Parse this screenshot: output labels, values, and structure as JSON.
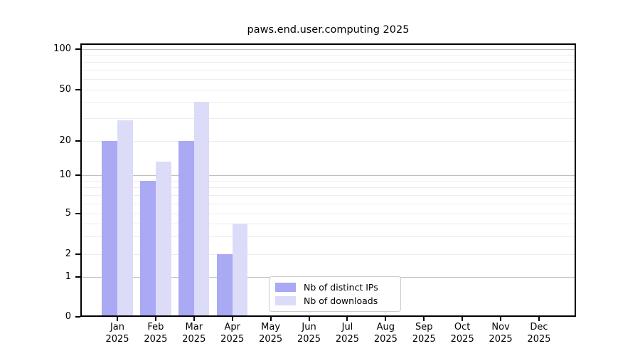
{
  "figure": {
    "title": "paws.end.user.computing 2025"
  },
  "chart_data": {
    "type": "bar",
    "title": "paws.end.user.computing 2025",
    "x_categories": [
      "Jan",
      "Feb",
      "Mar",
      "Apr",
      "May",
      "Jun",
      "Jul",
      "Aug",
      "Sep",
      "Oct",
      "Nov",
      "Dec"
    ],
    "x_year_label": "2025",
    "series": [
      {
        "name": "Nb of distinct IPs",
        "color": "#a9a9f4",
        "values": [
          20,
          9,
          20,
          2,
          null,
          null,
          null,
          null,
          null,
          null,
          null,
          null
        ]
      },
      {
        "name": "Nb of downloads",
        "color": "#dcdcf8",
        "values": [
          29,
          13,
          40,
          4,
          null,
          null,
          null,
          null,
          null,
          null,
          null,
          null
        ]
      }
    ],
    "xlabel": "",
    "ylabel": "",
    "y_ticks": [
      0,
      1,
      2,
      5,
      10,
      20,
      50,
      100
    ],
    "y_scale": "log-like with 0 baseline",
    "ylim": [
      0,
      112
    ],
    "grid": true,
    "grid_major_values": [
      1,
      10,
      100
    ],
    "grid_minor_values": [
      2,
      3,
      4,
      5,
      6,
      7,
      8,
      9,
      20,
      30,
      40,
      50,
      60,
      70,
      80,
      90
    ],
    "legend_position": "inside axes, lower middle-right",
    "colors": {
      "axis": "#000000",
      "grid_major": "#c0c0c0",
      "grid_minor": "#ededed",
      "background": "#ffffff",
      "legend_border": "#cccccc"
    }
  }
}
